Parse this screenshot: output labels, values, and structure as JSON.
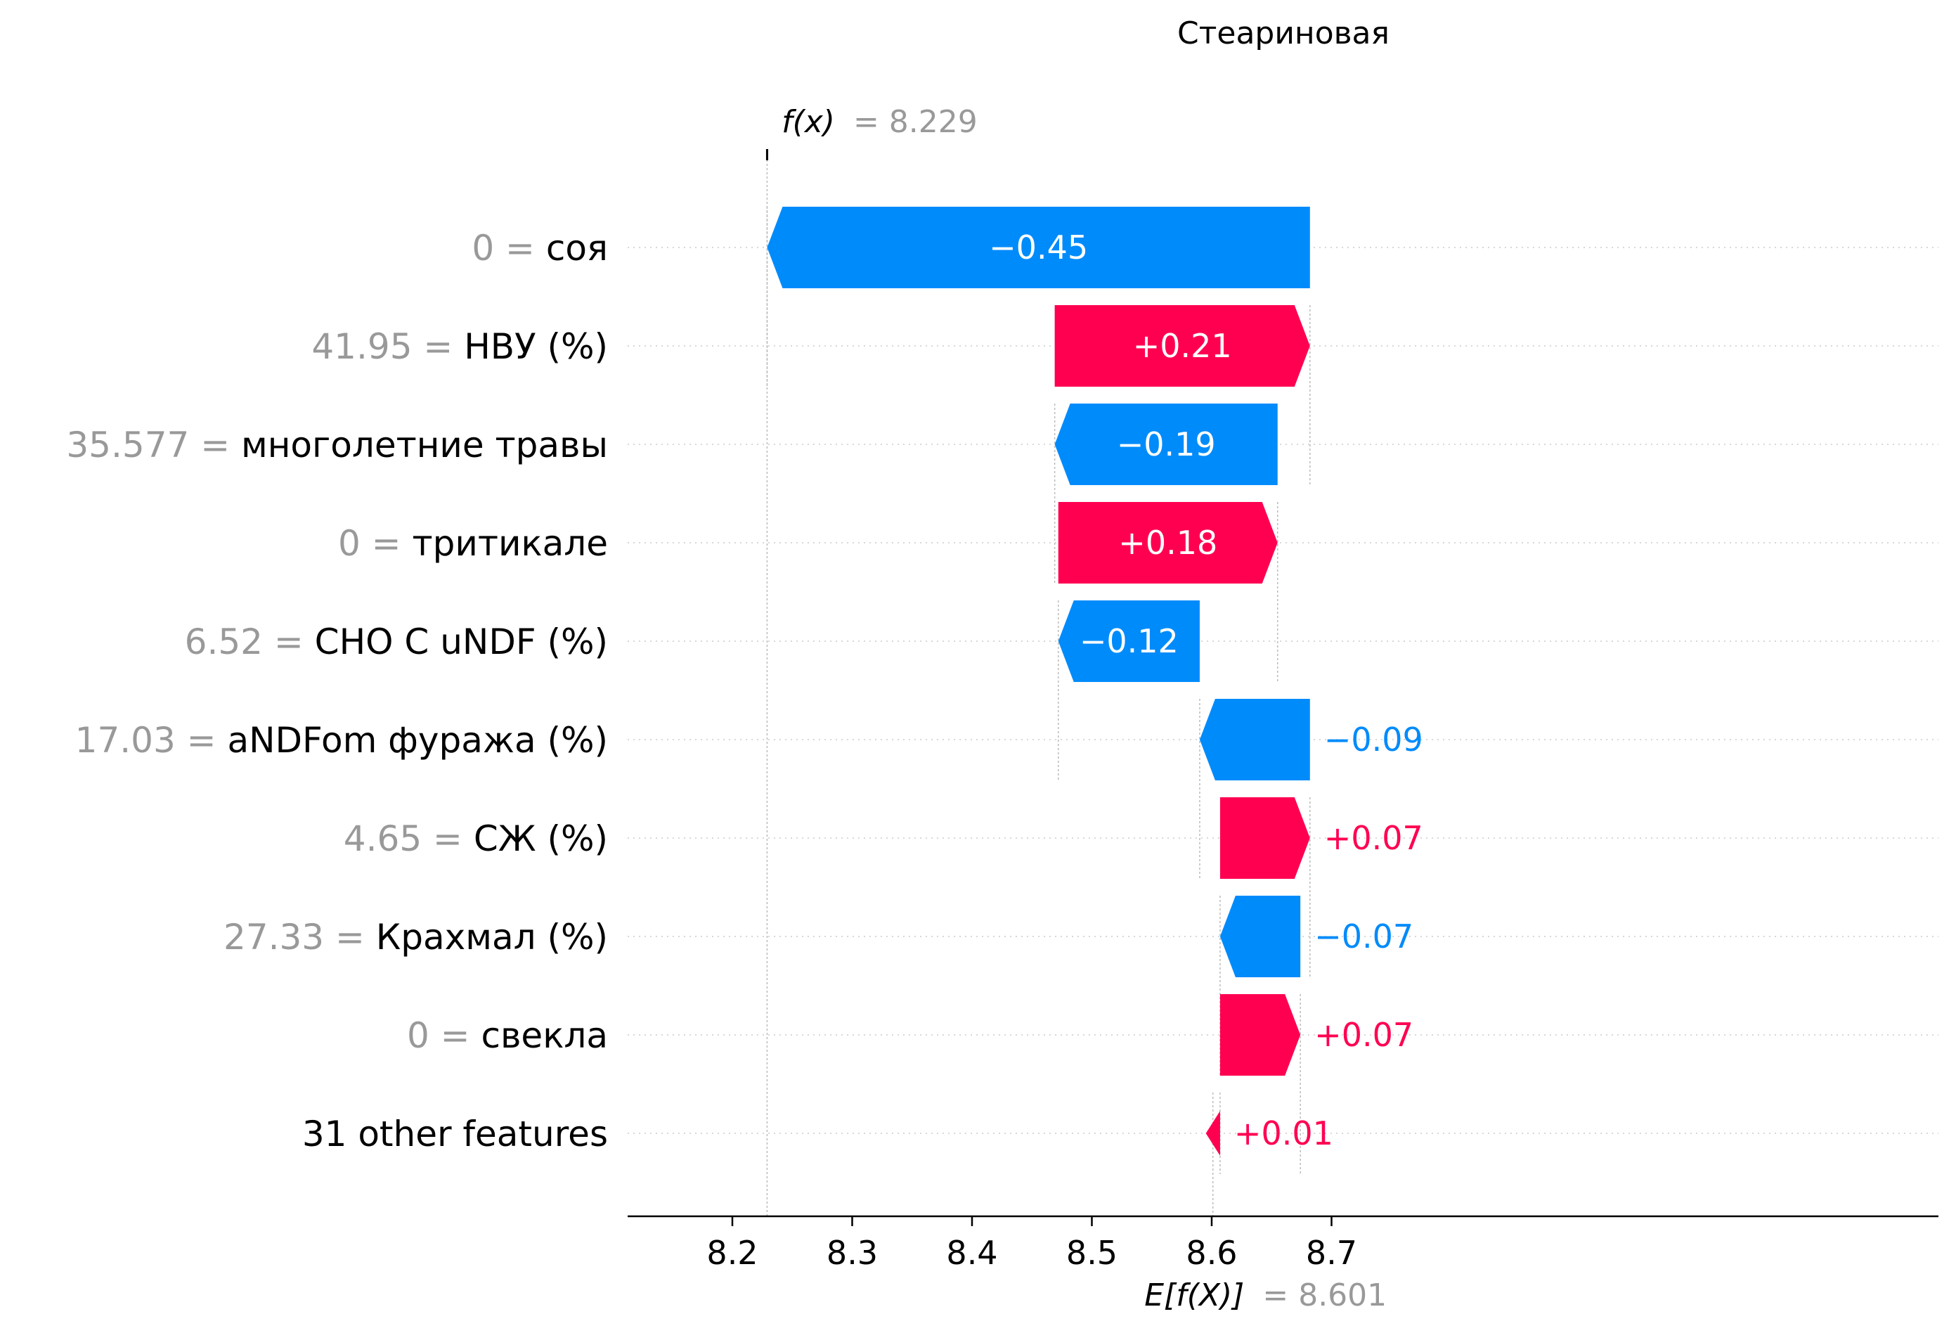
{
  "chart_data": {
    "type": "waterfall",
    "title": "Стеариновая",
    "fx_label": "f(x)",
    "fx_value_text": "= 8.229",
    "fx_value": 8.229,
    "efx_label": "E[f(X)]",
    "efx_value_text": "= 8.601",
    "efx_value": 8.601,
    "xlim": [
      8.15,
      8.76
    ],
    "x_ticks": [
      "8.2",
      "8.3",
      "8.4",
      "8.5",
      "8.6",
      "8.7"
    ],
    "x_tick_values": [
      8.2,
      8.3,
      8.4,
      8.5,
      8.6,
      8.7
    ],
    "colors": {
      "positive": "#ff0051",
      "negative": "#008bfb",
      "value_text": "#999999",
      "label_text": "#000000"
    },
    "features": [
      {
        "value": "0",
        "name": "соя",
        "start": 8.682,
        "end": 8.229,
        "shap": -0.45,
        "label": "−0.45"
      },
      {
        "value": "41.95",
        "name": "НВУ (%)",
        "start": 8.469,
        "end": 8.682,
        "shap": 0.21,
        "label": "+0.21"
      },
      {
        "value": "35.577",
        "name": "многолетние травы",
        "start": 8.655,
        "end": 8.469,
        "shap": -0.19,
        "label": "−0.19"
      },
      {
        "value": "0",
        "name": "тритикале",
        "start": 8.472,
        "end": 8.655,
        "shap": 0.18,
        "label": "+0.18"
      },
      {
        "value": "6.52",
        "name": "СНО С uNDF (%)",
        "start": 8.59,
        "end": 8.472,
        "shap": -0.12,
        "label": "−0.12"
      },
      {
        "value": "17.03",
        "name": "aNDFom фуража (%)",
        "start": 8.682,
        "end": 8.59,
        "shap": -0.09,
        "label": "−0.09"
      },
      {
        "value": "4.65",
        "name": "СЖ (%)",
        "start": 8.607,
        "end": 8.682,
        "shap": 0.07,
        "label": "+0.07"
      },
      {
        "value": "27.33",
        "name": "Крахмал (%)",
        "start": 8.674,
        "end": 8.607,
        "shap": -0.07,
        "label": "−0.07"
      },
      {
        "value": "0",
        "name": "свекла",
        "start": 8.607,
        "end": 8.674,
        "shap": 0.07,
        "label": "+0.07"
      },
      {
        "value": "",
        "name": "31 other features",
        "start": 8.601,
        "end": 8.607,
        "shap": 0.01,
        "label": "+0.01"
      }
    ]
  }
}
